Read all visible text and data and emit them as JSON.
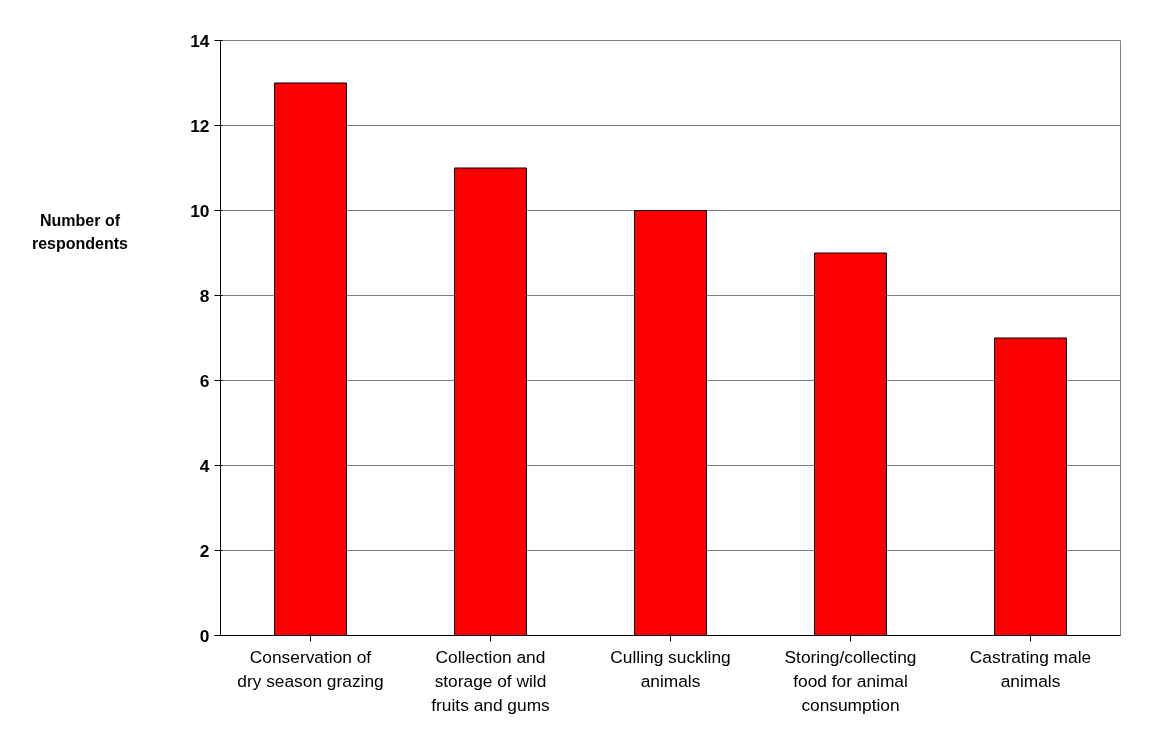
{
  "chart_data": {
    "type": "bar",
    "ylabel": "Number of respondents",
    "categories": [
      "Conservation of dry season grazing",
      "Collection and storage of wild fruits and gums",
      "Culling suckling animals",
      "Storing/collecting food for animal consumption",
      "Castrating male animals"
    ],
    "values": [
      13,
      11,
      10,
      9,
      7
    ],
    "color": "#ff0000",
    "ylim": [
      0,
      14
    ],
    "yticks": [
      0,
      2,
      4,
      6,
      8,
      10,
      12,
      14
    ],
    "grid": "y"
  }
}
